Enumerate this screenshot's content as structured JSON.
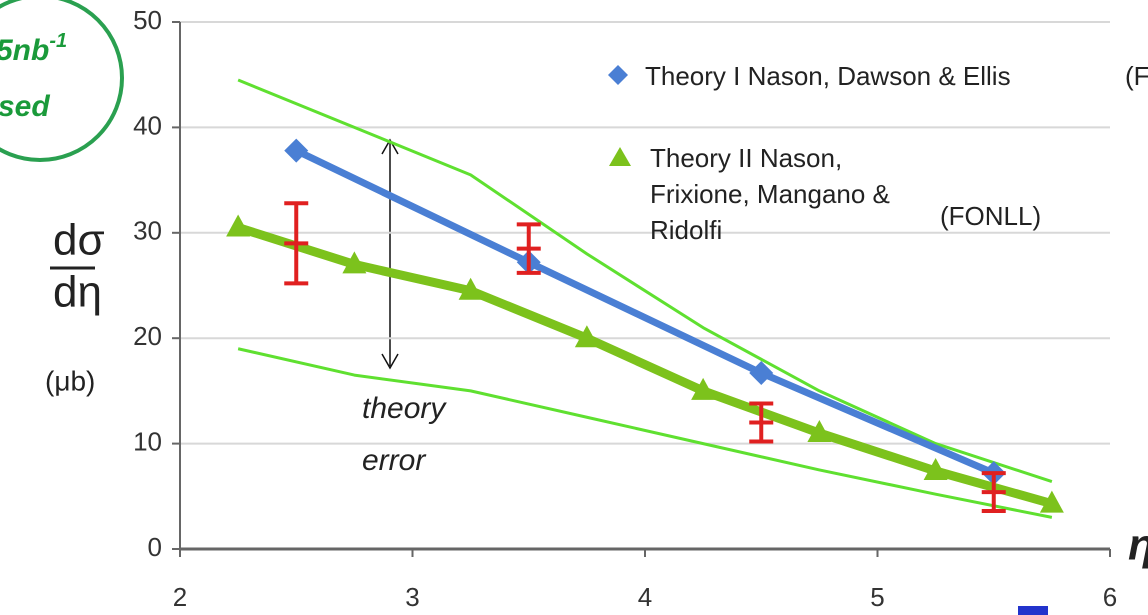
{
  "chart_data": {
    "type": "line",
    "xlim": [
      2,
      6
    ],
    "xticks": [
      2,
      3,
      4,
      5,
      6
    ],
    "ylim": [
      0,
      50
    ],
    "yticks": [
      0,
      10,
      20,
      30,
      40,
      50
    ],
    "grid": true,
    "ylabel": {
      "numerator": "dσ",
      "denominator": "dη",
      "unit": "(μb)"
    },
    "series": [
      {
        "name": "Theory I Nason, Dawson & Ellis",
        "color": "#4a7fd4",
        "marker": "diamond",
        "x": [
          2.5,
          3.5,
          4.5,
          5.5
        ],
        "values": [
          37.8,
          27.2,
          16.7,
          7.2
        ]
      },
      {
        "name": "Theory II Nason, Frixione, Mangano & Ridolfi",
        "color": "#7cc21c",
        "marker": "triangle",
        "x": [
          2.25,
          2.75,
          3.25,
          3.75,
          4.25,
          4.75,
          5.25,
          5.75
        ],
        "values": [
          30.5,
          27,
          24.5,
          20,
          15,
          11,
          7.4,
          4.3
        ]
      }
    ],
    "bands": {
      "color": "#5fe030",
      "x": [
        2.25,
        2.75,
        3.25,
        3.75,
        4.25,
        4.75,
        5.25,
        5.75
      ],
      "upper": [
        44.5,
        40,
        35.5,
        28,
        21,
        15,
        10,
        6.4
      ],
      "lower": [
        19,
        16.5,
        15,
        12.5,
        10,
        7.5,
        5.2,
        3
      ]
    },
    "measurements": {
      "color": "#e02020",
      "x": [
        2.5,
        3.5,
        4.5,
        5.5
      ],
      "values": [
        29,
        28.5,
        12,
        5.4
      ],
      "errors": [
        3.8,
        2.3,
        1.8,
        1.8
      ]
    },
    "annotations": {
      "legend_suffix_1": "(F",
      "legend_suffix_2": "(FONLL)",
      "theory_error": [
        "theory",
        "error"
      ],
      "lumi": "5nb",
      "lumi_exp": "-1",
      "used": "sed",
      "eta": "η"
    }
  }
}
